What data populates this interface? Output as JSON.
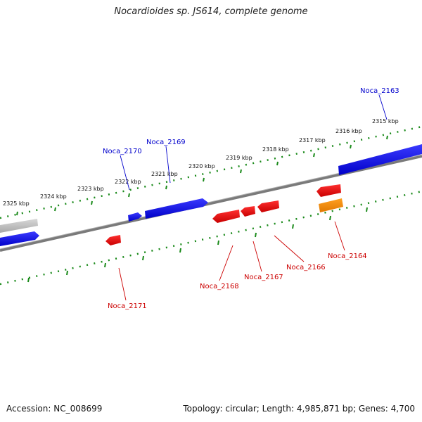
{
  "title": "Nocardioides sp. JS614, complete genome",
  "footer": {
    "accession": "Accession: NC_008699",
    "summary": "Topology: circular; Length: 4,985,871 bp; Genes: 4,700"
  },
  "colors": {
    "forward_gene": "#0000ee",
    "reverse_gene": "#ee0000",
    "rna_gene": "#ff8c00",
    "faded_gene": "#bbbbbb",
    "backbone": "#808080",
    "tick": "#1a8a1a",
    "forward_label": "#0000cc",
    "reverse_label": "#cc0000"
  },
  "scale": {
    "kbp_labels": [
      "2325 kbp",
      "2324 kbp",
      "2323 kbp",
      "2322 kbp",
      "2321 kbp",
      "2320 kbp",
      "2319 kbp",
      "2318 kbp",
      "2317 kbp",
      "2316 kbp",
      "2315 kbp"
    ]
  },
  "genes": {
    "forward": [
      "Noca_2163",
      "Noca_2169",
      "Noca_2170"
    ],
    "reverse": [
      "Noca_2164",
      "Noca_2166",
      "Noca_2167",
      "Noca_2168",
      "Noca_2171"
    ]
  }
}
